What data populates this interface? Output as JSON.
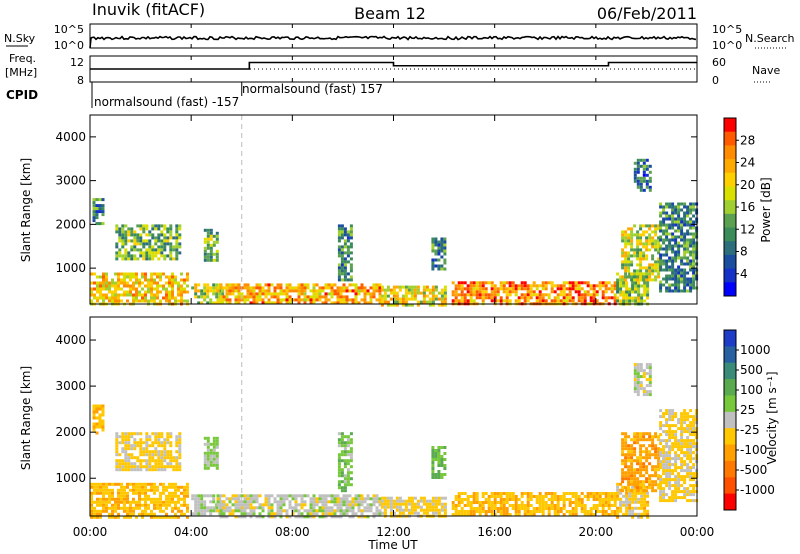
{
  "header": {
    "station": "Inuvik (fitACF)",
    "beam": "Beam 12",
    "date": "06/Feb/2011"
  },
  "noise_panel": {
    "left_label": "N.Sky",
    "left_ticks": [
      "10^5",
      "10^0"
    ],
    "right_label": "N.Search",
    "right_ticks": [
      "10^5",
      "10^0"
    ]
  },
  "freq_panel": {
    "left_label_1": "Freq.",
    "left_label_2": "[MHz]",
    "left_ticks": [
      "12",
      "8"
    ],
    "right_label": "Nave",
    "right_ticks": [
      "60",
      "0"
    ]
  },
  "cpid_panel": {
    "label": "CPID",
    "mode_1": "normalsound (fast) -157",
    "mode_2": "normalsound (fast) 157"
  },
  "power_colorbar": {
    "label": "Power [dB]",
    "ticks": [
      "28",
      "24",
      "20",
      "16",
      "12",
      "8",
      "4"
    ],
    "colors": [
      "#ff0000",
      "#ff5a00",
      "#ff8c00",
      "#ffaa00",
      "#ffd000",
      "#d8e000",
      "#a0d030",
      "#5aa050",
      "#3c8c5a",
      "#2c6e7c",
      "#1c4ea0",
      "#1432c8",
      "#0000ff"
    ]
  },
  "velocity_colorbar": {
    "label": "Velocity [m s⁻¹]",
    "ticks": [
      "1000",
      "500",
      "100",
      "25",
      "-25",
      "-100",
      "-500",
      "-1000"
    ],
    "colors": [
      "#1e3cc8",
      "#2860a0",
      "#3a8c78",
      "#5aaa50",
      "#78c83c",
      "#c0c0c0",
      "#ffc800",
      "#ffa000",
      "#ff7800",
      "#ff5000",
      "#ff0000"
    ]
  },
  "x_axis": {
    "label": "Time UT",
    "ticks": [
      "00:00",
      "04:00",
      "08:00",
      "12:00",
      "16:00",
      "20:00",
      "00:00"
    ]
  },
  "y_axis": {
    "label": "Slant Range [km]",
    "ticks": [
      "4000",
      "3000",
      "2000",
      "1000"
    ]
  },
  "chart_data": {
    "type": "heatmap",
    "panels": [
      "Power [dB]",
      "Velocity [m s⁻¹]"
    ],
    "x_range_hours": [
      0,
      24
    ],
    "y_range_km": [
      180,
      4500
    ],
    "power_scale_db": [
      0,
      32
    ],
    "velocity_scale": [
      -1000,
      1000
    ],
    "power_patches": [
      {
        "t0": 0.0,
        "t1": 3.9,
        "r0": 180,
        "r1": 900,
        "v": 22
      },
      {
        "t0": 1.0,
        "t1": 3.6,
        "r0": 1200,
        "r1": 2000,
        "v": 14
      },
      {
        "t0": 0.1,
        "t1": 0.5,
        "r0": 2000,
        "r1": 2600,
        "v": 10
      },
      {
        "t0": 4.0,
        "t1": 5.2,
        "r0": 200,
        "r1": 650,
        "v": 18
      },
      {
        "t0": 4.5,
        "t1": 5.0,
        "r0": 1200,
        "r1": 1900,
        "v": 14
      },
      {
        "t0": 5.0,
        "t1": 11.5,
        "r0": 180,
        "r1": 650,
        "v": 24
      },
      {
        "t0": 9.8,
        "t1": 10.3,
        "r0": 700,
        "r1": 2000,
        "v": 10
      },
      {
        "t0": 11.5,
        "t1": 14.0,
        "r0": 180,
        "r1": 600,
        "v": 20
      },
      {
        "t0": 13.5,
        "t1": 14.0,
        "r0": 1000,
        "r1": 1700,
        "v": 10
      },
      {
        "t0": 14.3,
        "t1": 20.8,
        "r0": 180,
        "r1": 700,
        "v": 26
      },
      {
        "t0": 20.8,
        "t1": 22.0,
        "r0": 180,
        "r1": 900,
        "v": 16
      },
      {
        "t0": 21.0,
        "t1": 22.5,
        "r0": 700,
        "r1": 2000,
        "v": 18
      },
      {
        "t0": 22.5,
        "t1": 24.0,
        "r0": 500,
        "r1": 2500,
        "v": 10
      },
      {
        "t0": 21.5,
        "t1": 22.2,
        "r0": 2800,
        "r1": 3500,
        "v": 8
      }
    ],
    "velocity_patches": [
      {
        "t0": 0.0,
        "t1": 3.9,
        "r0": 180,
        "r1": 900,
        "v": -250
      },
      {
        "t0": 1.0,
        "t1": 3.6,
        "r0": 1200,
        "r1": 2000,
        "v": -150
      },
      {
        "t0": 0.1,
        "t1": 0.5,
        "r0": 2000,
        "r1": 2600,
        "v": -300
      },
      {
        "t0": 4.0,
        "t1": 5.2,
        "r0": 200,
        "r1": 650,
        "v": 60
      },
      {
        "t0": 4.5,
        "t1": 5.0,
        "r0": 1200,
        "r1": 1900,
        "v": 150
      },
      {
        "t0": 5.0,
        "t1": 11.5,
        "r0": 180,
        "r1": 650,
        "v": 0
      },
      {
        "t0": 9.8,
        "t1": 10.3,
        "r0": 700,
        "r1": 2000,
        "v": 200
      },
      {
        "t0": 11.5,
        "t1": 14.0,
        "r0": 180,
        "r1": 600,
        "v": -150
      },
      {
        "t0": 13.5,
        "t1": 14.0,
        "r0": 1000,
        "r1": 1700,
        "v": 300
      },
      {
        "t0": 14.3,
        "t1": 20.8,
        "r0": 180,
        "r1": 700,
        "v": -250
      },
      {
        "t0": 20.8,
        "t1": 22.0,
        "r0": 180,
        "r1": 900,
        "v": -200
      },
      {
        "t0": 21.0,
        "t1": 22.5,
        "r0": 700,
        "r1": 2000,
        "v": -400
      },
      {
        "t0": 22.5,
        "t1": 24.0,
        "r0": 500,
        "r1": 2500,
        "v": -150
      },
      {
        "t0": 21.5,
        "t1": 22.2,
        "r0": 2800,
        "r1": 3500,
        "v": 0
      }
    ],
    "frequency_steps_mhz": [
      {
        "t0": 0.0,
        "t1": 6.3,
        "v": 10
      },
      {
        "t0": 6.3,
        "t1": 8.0,
        "v": 12
      },
      {
        "t0": 8.0,
        "t1": 12.0,
        "v": 12
      },
      {
        "t0": 12.0,
        "t1": 20.5,
        "v": 11
      },
      {
        "t0": 20.5,
        "t1": 24.0,
        "v": 12
      }
    ],
    "cpid_switch_hours": 6.0
  }
}
